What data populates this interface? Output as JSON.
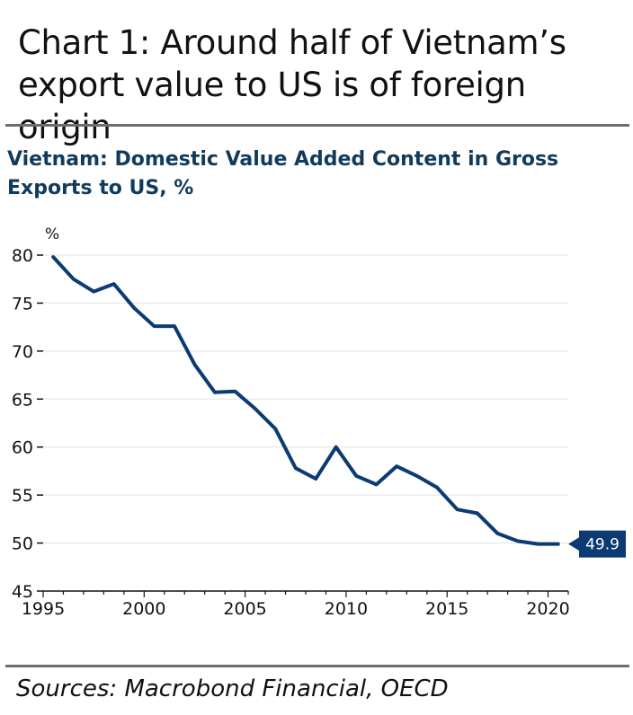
{
  "headline": "Chart 1: Around half of Vietnam’s export value to US is of foreign origin",
  "source": "Sources: Macrobond Financial, OECD",
  "colors": {
    "line": "#0c3a73",
    "rule": "#6d6d6d",
    "subtitle": "#123b5b"
  },
  "chart_data": {
    "type": "line",
    "title": "Vietnam: Domestic Value Added Content in Gross Exports to US, %",
    "ylabel": "%",
    "xlabel": "",
    "xlim": [
      1995,
      2021
    ],
    "ylim": [
      45,
      80
    ],
    "x_ticks": [
      1995,
      2000,
      2005,
      2010,
      2015,
      2020
    ],
    "y_ticks": [
      45,
      50,
      55,
      60,
      65,
      70,
      75,
      80
    ],
    "grid": "horizontal",
    "series": [
      {
        "x": [
          1995.5,
          1996.5,
          1997.5,
          1998.5,
          1999.5,
          2000.5,
          2001.5,
          2002.5,
          2003.5,
          2004.5,
          2005.5,
          2006.5,
          2007.5,
          2008.5,
          2009.5,
          2010.5,
          2011.5,
          2012.5,
          2013.5,
          2014.5,
          2015.5,
          2016.5,
          2017.5,
          2018.5,
          2019.5,
          2020.5
        ],
        "values": [
          79.8,
          77.5,
          76.2,
          77.0,
          74.5,
          72.6,
          72.6,
          68.6,
          65.7,
          65.8,
          64.0,
          61.9,
          57.8,
          56.7,
          60.0,
          57.0,
          56.1,
          58.0,
          57.0,
          55.8,
          53.5,
          53.1,
          51.0,
          50.2,
          49.9,
          49.9
        ]
      }
    ],
    "end_label": "49.9"
  }
}
